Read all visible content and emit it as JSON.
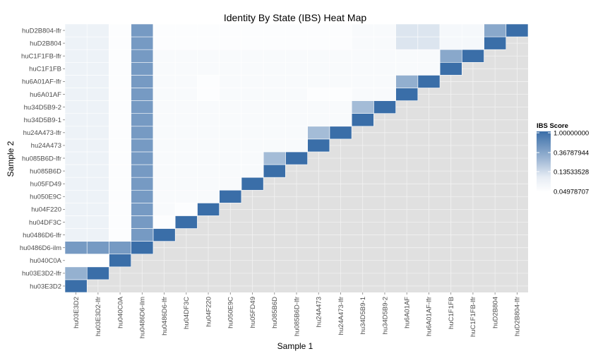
{
  "chart_data": {
    "type": "heatmap",
    "title": "Identity By State (IBS) Heat Map",
    "xlabel": "Sample 1",
    "ylabel": "Sample 2",
    "samples": [
      "hu03E3D2",
      "hu03E3D2-lfr",
      "hu040C0A",
      "hu0486D6-ilm",
      "hu0486D6-lfr",
      "hu04DF3C",
      "hu04F220",
      "hu050E9C",
      "hu05FD49",
      "hu085B6D",
      "hu085B6D-lfr",
      "hu24A473",
      "hu24A473-lfr",
      "hu34D5B9-1",
      "hu34D5B9-2",
      "hu6A01AF",
      "hu6A01AF-lfr",
      "huC1F1FB",
      "huC1F1FB-lfr",
      "huD2B804",
      "huD2B804-lfr"
    ],
    "legend": {
      "title": "IBS Score",
      "labels": [
        "1.00000000",
        "0.36787944",
        "0.13533528",
        "0.04978707"
      ],
      "values": [
        1.0,
        0.36787944,
        0.13533528,
        0.04978707
      ]
    },
    "color_low": "#ffffff",
    "color_high": "#3a6ea8",
    "color_panel": "#e0e0e0",
    "cells": [
      [
        0,
        0,
        1.0
      ],
      [
        1,
        1,
        1.0
      ],
      [
        2,
        2,
        1.0
      ],
      [
        3,
        3,
        1.0
      ],
      [
        4,
        4,
        1.0
      ],
      [
        5,
        5,
        1.0
      ],
      [
        6,
        6,
        1.0
      ],
      [
        7,
        7,
        1.0
      ],
      [
        8,
        8,
        1.0
      ],
      [
        9,
        9,
        1.0
      ],
      [
        10,
        10,
        1.0
      ],
      [
        11,
        11,
        1.0
      ],
      [
        12,
        12,
        1.0
      ],
      [
        13,
        13,
        1.0
      ],
      [
        14,
        14,
        1.0
      ],
      [
        15,
        15,
        1.0
      ],
      [
        16,
        16,
        1.0
      ],
      [
        17,
        17,
        1.0
      ],
      [
        18,
        18,
        1.0
      ],
      [
        19,
        19,
        1.0
      ],
      [
        20,
        20,
        1.0
      ],
      [
        0,
        1,
        0.25
      ],
      [
        0,
        3,
        0.4
      ],
      [
        1,
        3,
        0.4
      ],
      [
        2,
        3,
        0.4
      ],
      [
        0,
        2,
        0.05
      ],
      [
        1,
        2,
        0.05
      ],
      [
        3,
        4,
        0.4
      ],
      [
        3,
        5,
        0.4
      ],
      [
        3,
        6,
        0.4
      ],
      [
        3,
        7,
        0.4
      ],
      [
        3,
        8,
        0.4
      ],
      [
        3,
        9,
        0.4
      ],
      [
        3,
        10,
        0.4
      ],
      [
        3,
        11,
        0.4
      ],
      [
        3,
        12,
        0.4
      ],
      [
        3,
        13,
        0.4
      ],
      [
        3,
        14,
        0.4
      ],
      [
        3,
        15,
        0.4
      ],
      [
        3,
        16,
        0.4
      ],
      [
        3,
        17,
        0.4
      ],
      [
        3,
        18,
        0.4
      ],
      [
        3,
        19,
        0.4
      ],
      [
        3,
        20,
        0.4
      ],
      [
        9,
        10,
        0.2
      ],
      [
        11,
        12,
        0.2
      ],
      [
        13,
        14,
        0.2
      ],
      [
        15,
        16,
        0.26
      ],
      [
        17,
        18,
        0.3
      ],
      [
        19,
        20,
        0.3
      ],
      [
        0,
        4,
        0.065
      ],
      [
        1,
        4,
        0.065
      ],
      [
        2,
        4,
        0.052
      ],
      [
        0,
        5,
        0.065
      ],
      [
        1,
        5,
        0.065
      ],
      [
        2,
        5,
        0.052
      ],
      [
        4,
        5,
        0.052
      ],
      [
        0,
        6,
        0.065
      ],
      [
        1,
        6,
        0.065
      ],
      [
        2,
        6,
        0.052
      ],
      [
        4,
        6,
        0.055
      ],
      [
        5,
        6,
        0.052
      ],
      [
        0,
        7,
        0.065
      ],
      [
        1,
        7,
        0.065
      ],
      [
        2,
        7,
        0.052
      ],
      [
        4,
        7,
        0.055
      ],
      [
        5,
        7,
        0.055
      ],
      [
        6,
        7,
        0.055
      ],
      [
        0,
        8,
        0.065
      ],
      [
        1,
        8,
        0.065
      ],
      [
        2,
        8,
        0.052
      ],
      [
        4,
        8,
        0.055
      ],
      [
        5,
        8,
        0.055
      ],
      [
        6,
        8,
        0.055
      ],
      [
        7,
        8,
        0.055
      ],
      [
        0,
        9,
        0.065
      ],
      [
        1,
        9,
        0.065
      ],
      [
        2,
        9,
        0.052
      ],
      [
        4,
        9,
        0.055
      ],
      [
        5,
        9,
        0.055
      ],
      [
        6,
        9,
        0.055
      ],
      [
        7,
        9,
        0.055
      ],
      [
        8,
        9,
        0.055
      ],
      [
        0,
        10,
        0.065
      ],
      [
        1,
        10,
        0.065
      ],
      [
        2,
        10,
        0.052
      ],
      [
        4,
        10,
        0.055
      ],
      [
        5,
        10,
        0.055
      ],
      [
        6,
        10,
        0.055
      ],
      [
        7,
        10,
        0.055
      ],
      [
        8,
        10,
        0.055
      ],
      [
        0,
        11,
        0.065
      ],
      [
        1,
        11,
        0.065
      ],
      [
        2,
        11,
        0.052
      ],
      [
        4,
        11,
        0.055
      ],
      [
        5,
        11,
        0.055
      ],
      [
        6,
        11,
        0.055
      ],
      [
        7,
        11,
        0.055
      ],
      [
        8,
        11,
        0.055
      ],
      [
        9,
        11,
        0.055
      ],
      [
        10,
        11,
        0.055
      ],
      [
        0,
        12,
        0.065
      ],
      [
        1,
        12,
        0.065
      ],
      [
        2,
        12,
        0.052
      ],
      [
        4,
        12,
        0.055
      ],
      [
        5,
        12,
        0.055
      ],
      [
        6,
        12,
        0.055
      ],
      [
        7,
        12,
        0.055
      ],
      [
        8,
        12,
        0.055
      ],
      [
        9,
        12,
        0.055
      ],
      [
        10,
        12,
        0.055
      ],
      [
        0,
        13,
        0.065
      ],
      [
        1,
        13,
        0.065
      ],
      [
        2,
        13,
        0.052
      ],
      [
        4,
        13,
        0.055
      ],
      [
        5,
        13,
        0.055
      ],
      [
        6,
        13,
        0.055
      ],
      [
        7,
        13,
        0.055
      ],
      [
        8,
        13,
        0.055
      ],
      [
        9,
        13,
        0.055
      ],
      [
        10,
        13,
        0.055
      ],
      [
        11,
        13,
        0.055
      ],
      [
        12,
        13,
        0.055
      ],
      [
        0,
        14,
        0.065
      ],
      [
        1,
        14,
        0.065
      ],
      [
        2,
        14,
        0.052
      ],
      [
        4,
        14,
        0.055
      ],
      [
        5,
        14,
        0.055
      ],
      [
        6,
        14,
        0.055
      ],
      [
        7,
        14,
        0.055
      ],
      [
        8,
        14,
        0.055
      ],
      [
        9,
        14,
        0.055
      ],
      [
        10,
        14,
        0.055
      ],
      [
        11,
        14,
        0.055
      ],
      [
        12,
        14,
        0.055
      ],
      [
        0,
        15,
        0.065
      ],
      [
        1,
        15,
        0.065
      ],
      [
        2,
        15,
        0.052
      ],
      [
        4,
        15,
        0.055
      ],
      [
        5,
        15,
        0.055
      ],
      [
        6,
        15,
        0.052
      ],
      [
        7,
        15,
        0.055
      ],
      [
        8,
        15,
        0.055
      ],
      [
        9,
        15,
        0.055
      ],
      [
        10,
        15,
        0.055
      ],
      [
        11,
        15,
        0.052
      ],
      [
        12,
        15,
        0.052
      ],
      [
        13,
        15,
        0.055
      ],
      [
        14,
        15,
        0.055
      ],
      [
        0,
        16,
        0.065
      ],
      [
        1,
        16,
        0.065
      ],
      [
        2,
        16,
        0.052
      ],
      [
        4,
        16,
        0.055
      ],
      [
        5,
        16,
        0.055
      ],
      [
        6,
        16,
        0.052
      ],
      [
        7,
        16,
        0.055
      ],
      [
        8,
        16,
        0.055
      ],
      [
        9,
        16,
        0.055
      ],
      [
        10,
        16,
        0.055
      ],
      [
        11,
        16,
        0.055
      ],
      [
        12,
        16,
        0.055
      ],
      [
        13,
        16,
        0.055
      ],
      [
        14,
        16,
        0.055
      ],
      [
        0,
        17,
        0.065
      ],
      [
        1,
        17,
        0.065
      ],
      [
        2,
        17,
        0.052
      ],
      [
        4,
        17,
        0.055
      ],
      [
        5,
        17,
        0.055
      ],
      [
        6,
        17,
        0.055
      ],
      [
        7,
        17,
        0.055
      ],
      [
        8,
        17,
        0.055
      ],
      [
        9,
        17,
        0.055
      ],
      [
        10,
        17,
        0.055
      ],
      [
        11,
        17,
        0.055
      ],
      [
        12,
        17,
        0.055
      ],
      [
        13,
        17,
        0.055
      ],
      [
        14,
        17,
        0.055
      ],
      [
        15,
        17,
        0.055
      ],
      [
        16,
        17,
        0.055
      ],
      [
        0,
        18,
        0.065
      ],
      [
        1,
        18,
        0.065
      ],
      [
        2,
        18,
        0.052
      ],
      [
        4,
        18,
        0.055
      ],
      [
        5,
        18,
        0.055
      ],
      [
        6,
        18,
        0.055
      ],
      [
        7,
        18,
        0.055
      ],
      [
        8,
        18,
        0.055
      ],
      [
        9,
        18,
        0.055
      ],
      [
        10,
        18,
        0.055
      ],
      [
        11,
        18,
        0.055
      ],
      [
        12,
        18,
        0.055
      ],
      [
        13,
        18,
        0.055
      ],
      [
        14,
        18,
        0.055
      ],
      [
        15,
        18,
        0.055
      ],
      [
        16,
        18,
        0.055
      ],
      [
        0,
        19,
        0.065
      ],
      [
        1,
        19,
        0.065
      ],
      [
        2,
        19,
        0.052
      ],
      [
        4,
        19,
        0.052
      ],
      [
        5,
        19,
        0.052
      ],
      [
        6,
        19,
        0.052
      ],
      [
        7,
        19,
        0.052
      ],
      [
        8,
        19,
        0.052
      ],
      [
        9,
        19,
        0.052
      ],
      [
        10,
        19,
        0.052
      ],
      [
        11,
        19,
        0.052
      ],
      [
        12,
        19,
        0.052
      ],
      [
        13,
        19,
        0.055
      ],
      [
        14,
        19,
        0.055
      ],
      [
        15,
        19,
        0.085
      ],
      [
        16,
        19,
        0.085
      ],
      [
        17,
        19,
        0.058
      ],
      [
        18,
        19,
        0.058
      ],
      [
        0,
        20,
        0.065
      ],
      [
        1,
        20,
        0.065
      ],
      [
        2,
        20,
        0.052
      ],
      [
        4,
        20,
        0.052
      ],
      [
        5,
        20,
        0.052
      ],
      [
        6,
        20,
        0.052
      ],
      [
        7,
        20,
        0.052
      ],
      [
        8,
        20,
        0.052
      ],
      [
        9,
        20,
        0.052
      ],
      [
        10,
        20,
        0.052
      ],
      [
        11,
        20,
        0.052
      ],
      [
        12,
        20,
        0.052
      ],
      [
        13,
        20,
        0.055
      ],
      [
        14,
        20,
        0.055
      ],
      [
        15,
        20,
        0.085
      ],
      [
        16,
        20,
        0.085
      ],
      [
        17,
        20,
        0.058
      ],
      [
        18,
        20,
        0.058
      ]
    ]
  }
}
